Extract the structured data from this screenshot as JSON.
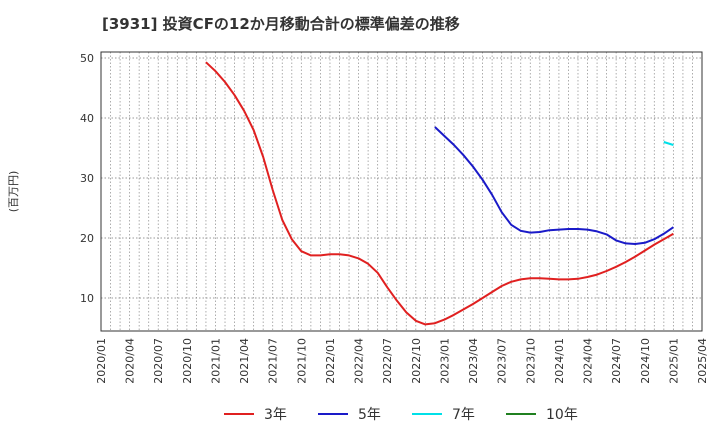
{
  "chart_data": {
    "type": "line",
    "title": "[3931]  投資CFの12か月移動合計の標準偏差の推移",
    "ylabel": "(百万円)",
    "xlabel": "",
    "ylim": [
      4.5,
      51
    ],
    "yticks": [
      10,
      20,
      30,
      40,
      50
    ],
    "xlim": [
      "2020-01",
      "2025-04"
    ],
    "xticks": [
      "2020/01",
      "2020/04",
      "2020/07",
      "2020/10",
      "2021/01",
      "2021/04",
      "2021/07",
      "2021/10",
      "2022/01",
      "2022/04",
      "2022/07",
      "2022/10",
      "2023/01",
      "2023/04",
      "2023/07",
      "2023/10",
      "2024/01",
      "2024/04",
      "2024/07",
      "2024/10",
      "2025/01",
      "2025/04"
    ],
    "grid": true,
    "legend_position": "bottom",
    "series": [
      {
        "name": "3年",
        "color": "#e02020",
        "points": [
          [
            "2020-12",
            49.3
          ],
          [
            "2021-01",
            47.8
          ],
          [
            "2021-02",
            46.0
          ],
          [
            "2021-03",
            43.8
          ],
          [
            "2021-04",
            41.2
          ],
          [
            "2021-05",
            38.0
          ],
          [
            "2021-06",
            33.5
          ],
          [
            "2021-07",
            28.0
          ],
          [
            "2021-08",
            23.0
          ],
          [
            "2021-09",
            19.8
          ],
          [
            "2021-10",
            17.8
          ],
          [
            "2021-11",
            17.1
          ],
          [
            "2021-12",
            17.1
          ],
          [
            "2022-01",
            17.3
          ],
          [
            "2022-02",
            17.3
          ],
          [
            "2022-03",
            17.1
          ],
          [
            "2022-04",
            16.6
          ],
          [
            "2022-05",
            15.7
          ],
          [
            "2022-06",
            14.2
          ],
          [
            "2022-07",
            11.8
          ],
          [
            "2022-08",
            9.6
          ],
          [
            "2022-09",
            7.6
          ],
          [
            "2022-10",
            6.2
          ],
          [
            "2022-11",
            5.6
          ],
          [
            "2022-12",
            5.8
          ],
          [
            "2023-01",
            6.4
          ],
          [
            "2023-02",
            7.2
          ],
          [
            "2023-03",
            8.1
          ],
          [
            "2023-04",
            9.0
          ],
          [
            "2023-05",
            10.0
          ],
          [
            "2023-06",
            11.0
          ],
          [
            "2023-07",
            12.0
          ],
          [
            "2023-08",
            12.7
          ],
          [
            "2023-09",
            13.1
          ],
          [
            "2023-10",
            13.3
          ],
          [
            "2023-11",
            13.3
          ],
          [
            "2023-12",
            13.2
          ],
          [
            "2024-01",
            13.1
          ],
          [
            "2024-02",
            13.1
          ],
          [
            "2024-03",
            13.2
          ],
          [
            "2024-04",
            13.5
          ],
          [
            "2024-05",
            13.9
          ],
          [
            "2024-06",
            14.5
          ],
          [
            "2024-07",
            15.2
          ],
          [
            "2024-08",
            16.0
          ],
          [
            "2024-09",
            16.9
          ],
          [
            "2024-10",
            17.9
          ],
          [
            "2024-11",
            18.9
          ],
          [
            "2024-12",
            19.8
          ],
          [
            "2025-01",
            20.7
          ]
        ]
      },
      {
        "name": "5年",
        "color": "#1a1ac8",
        "points": [
          [
            "2022-12",
            38.5
          ],
          [
            "2023-01",
            37.0
          ],
          [
            "2023-02",
            35.5
          ],
          [
            "2023-03",
            33.8
          ],
          [
            "2023-04",
            31.9
          ],
          [
            "2023-05",
            29.7
          ],
          [
            "2023-06",
            27.2
          ],
          [
            "2023-07",
            24.3
          ],
          [
            "2023-08",
            22.2
          ],
          [
            "2023-09",
            21.2
          ],
          [
            "2023-10",
            20.9
          ],
          [
            "2023-11",
            21.0
          ],
          [
            "2023-12",
            21.3
          ],
          [
            "2024-01",
            21.4
          ],
          [
            "2024-02",
            21.5
          ],
          [
            "2024-03",
            21.5
          ],
          [
            "2024-04",
            21.4
          ],
          [
            "2024-05",
            21.1
          ],
          [
            "2024-06",
            20.6
          ],
          [
            "2024-07",
            19.6
          ],
          [
            "2024-08",
            19.1
          ],
          [
            "2024-09",
            19.0
          ],
          [
            "2024-10",
            19.2
          ],
          [
            "2024-11",
            19.8
          ],
          [
            "2024-12",
            20.7
          ],
          [
            "2025-01",
            21.8
          ]
        ]
      },
      {
        "name": "7年",
        "color": "#00e0e8",
        "points": [
          [
            "2024-12",
            36.0
          ],
          [
            "2025-01",
            35.5
          ]
        ]
      },
      {
        "name": "10年",
        "color": "#208020",
        "points": []
      }
    ]
  }
}
